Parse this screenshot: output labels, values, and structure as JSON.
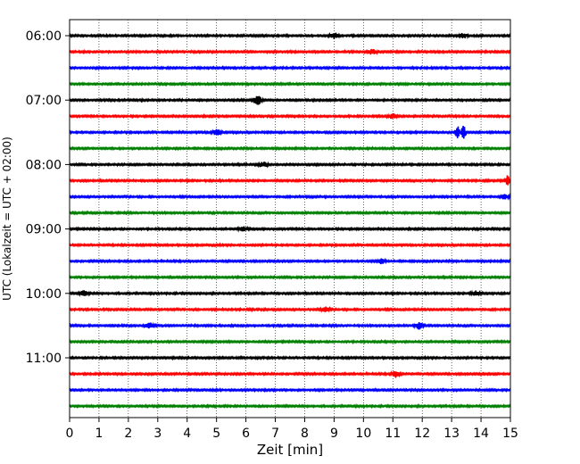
{
  "chart_data": {
    "type": "line",
    "subtype": "helicorder",
    "xlabel": "Zeit  [min]",
    "ylabel": "UTC (Lokalzeit = UTC + 02:00)",
    "xlim": [
      0,
      15
    ],
    "x_ticks": [
      0,
      1,
      2,
      3,
      4,
      5,
      6,
      7,
      8,
      9,
      10,
      11,
      12,
      13,
      14,
      15
    ],
    "y_tick_labels": [
      "06:00",
      "07:00",
      "08:00",
      "09:00",
      "10:00",
      "11:00"
    ],
    "traces_per_hour": 4,
    "trace_start": "06:00",
    "trace_end": "11:45",
    "trace_interval_minutes": 15,
    "trace_colors": [
      "#000000",
      "#ff0000",
      "#0000ff",
      "#008000"
    ],
    "vertical_grid": true,
    "grid_style": "dotted",
    "events": [
      {
        "trace": "06:00",
        "minute": 9.0,
        "amplitude": 0.35
      },
      {
        "trace": "06:00",
        "minute": 13.4,
        "amplitude": 0.3
      },
      {
        "trace": "06:15",
        "minute": 10.3,
        "amplitude": 0.3
      },
      {
        "trace": "07:00",
        "minute": 6.4,
        "amplitude": 0.55
      },
      {
        "trace": "07:15",
        "minute": 11.0,
        "amplitude": 0.3
      },
      {
        "trace": "07:30",
        "minute": 13.2,
        "amplitude": 0.9
      },
      {
        "trace": "07:30",
        "minute": 13.4,
        "amplitude": 0.9
      },
      {
        "trace": "07:30",
        "minute": 5.0,
        "amplitude": 0.4
      },
      {
        "trace": "08:00",
        "minute": 6.6,
        "amplitude": 0.3
      },
      {
        "trace": "08:15",
        "minute": 14.9,
        "amplitude": 0.7
      },
      {
        "trace": "08:30",
        "minute": 14.8,
        "amplitude": 0.3
      },
      {
        "trace": "09:00",
        "minute": 5.9,
        "amplitude": 0.35
      },
      {
        "trace": "09:30",
        "minute": 10.6,
        "amplitude": 0.3
      },
      {
        "trace": "10:00",
        "minute": 0.5,
        "amplitude": 0.35
      },
      {
        "trace": "10:00",
        "minute": 13.8,
        "amplitude": 0.3
      },
      {
        "trace": "10:15",
        "minute": 8.7,
        "amplitude": 0.3
      },
      {
        "trace": "10:30",
        "minute": 2.7,
        "amplitude": 0.4
      },
      {
        "trace": "10:30",
        "minute": 11.9,
        "amplitude": 0.4
      },
      {
        "trace": "11:15",
        "minute": 11.1,
        "amplitude": 0.4
      }
    ]
  }
}
